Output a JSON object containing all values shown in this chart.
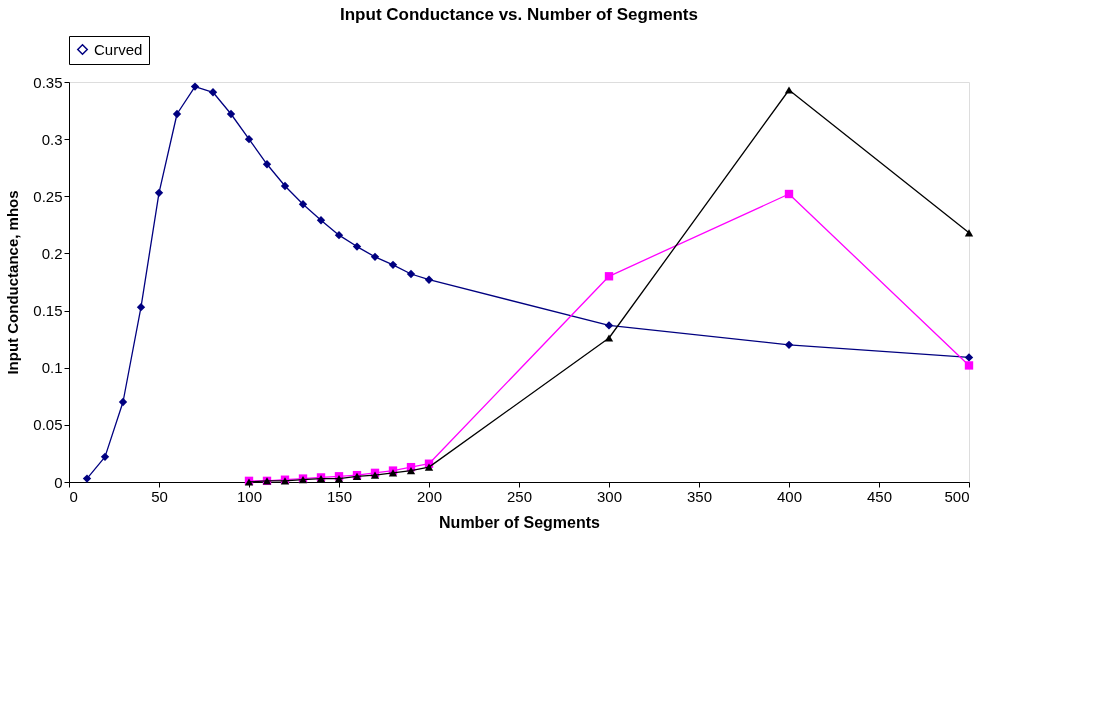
{
  "chart_data": {
    "type": "line",
    "title": "Input Conductance vs. Number of Segments",
    "xlabel": "Number of Segments",
    "ylabel": "Input Conductance, mhos",
    "series": [
      {
        "name": "Curved",
        "color": "#000080",
        "marker": "diamond",
        "x": [
          10,
          20,
          30,
          40,
          50,
          60,
          70,
          80,
          90,
          100,
          110,
          120,
          130,
          140,
          150,
          160,
          170,
          180,
          190,
          200,
          300,
          400,
          500
        ],
        "values": [
          0.003,
          0.022,
          0.07,
          0.153,
          0.253,
          0.322,
          0.346,
          0.341,
          0.322,
          0.3,
          0.278,
          0.259,
          0.243,
          0.229,
          0.216,
          0.206,
          0.197,
          0.19,
          0.182,
          0.177,
          0.137,
          0.12,
          0.109
        ]
      },
      {
        "color": "#ff00ff",
        "marker": "square",
        "x": [
          100,
          110,
          120,
          130,
          140,
          150,
          160,
          170,
          180,
          190,
          200,
          300,
          400,
          500
        ],
        "values": [
          0.001,
          0.001,
          0.002,
          0.003,
          0.004,
          0.005,
          0.006,
          0.008,
          0.01,
          0.013,
          0.016,
          0.18,
          0.252,
          0.102
        ]
      },
      {
        "color": "#000000",
        "marker": "triangle",
        "x": [
          100,
          110,
          120,
          130,
          140,
          150,
          160,
          170,
          180,
          190,
          200,
          300,
          400,
          500
        ],
        "values": [
          0.0,
          0.001,
          0.001,
          0.002,
          0.003,
          0.003,
          0.005,
          0.006,
          0.008,
          0.01,
          0.013,
          0.126,
          0.343,
          0.218
        ]
      }
    ],
    "xlim": [
      0,
      500
    ],
    "xticks": [
      0,
      50,
      100,
      150,
      200,
      250,
      300,
      350,
      400,
      450,
      500
    ],
    "ylim": [
      0,
      0.35
    ],
    "yticks": [
      0,
      0.05,
      0.1,
      0.15,
      0.2,
      0.25,
      0.3,
      0.35
    ],
    "grid": false,
    "legend": "top"
  }
}
